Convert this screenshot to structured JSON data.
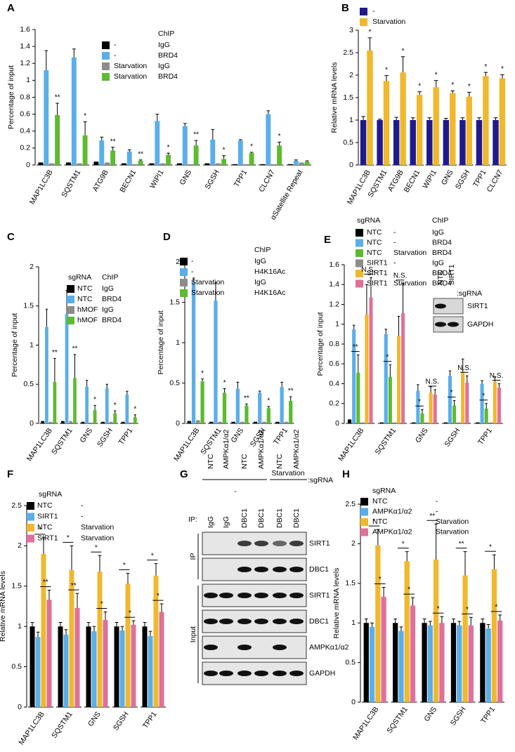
{
  "chart_data": [
    {
      "label": "A",
      "type": "bar",
      "y_label": "Percentage of input",
      "legend_header": [
        "ChIP"
      ],
      "categories": [
        "MAP1LC3B",
        "SQSTM1",
        "ATG9B",
        "BECN1",
        "WIPI1",
        "GNS",
        "SGSH",
        "TPP1",
        "CLCN7",
        "αSatellite Repeat"
      ],
      "ylim": [
        0,
        1.6
      ],
      "yticks": [
        0,
        0.2,
        0.4,
        0.6,
        0.8,
        1,
        1.2,
        1.4,
        1.6
      ],
      "series": [
        {
          "name": [
            "-",
            "IgG"
          ],
          "color": "#000000",
          "values": [
            0.03,
            0.03,
            0.04,
            0.02,
            0.02,
            0.02,
            0.02,
            0.01,
            0.01,
            0.01
          ]
        },
        {
          "name": [
            "-",
            "BRD4"
          ],
          "color": "#5aaeea",
          "values": [
            1.12,
            1.27,
            0.29,
            0.16,
            0.52,
            0.46,
            0.3,
            0.29,
            0.6,
            0.05
          ],
          "errors": [
            0.23,
            0.1,
            0.04,
            0.02,
            0.08,
            0.03,
            0.12,
            0.01,
            0.04,
            0.01
          ]
        },
        {
          "name": [
            "Starvation",
            "IgG"
          ],
          "color": "#8c8c8c",
          "values": [
            0.02,
            0.02,
            0.03,
            0.01,
            0.02,
            0.01,
            0.02,
            0.01,
            0.01,
            0.03
          ]
        },
        {
          "name": [
            "Starvation",
            "BRD4"
          ],
          "color": "#5dbb2e",
          "values": [
            0.59,
            0.35,
            0.17,
            0.05,
            0.12,
            0.23,
            0.07,
            0.14,
            0.23,
            0.04
          ],
          "errors": [
            0.14,
            0.16,
            0.04,
            0.01,
            0.02,
            0.06,
            0.04,
            0.01,
            0.04,
            0.01
          ],
          "significance": [
            "**",
            "*",
            "**",
            "**",
            "*",
            "**",
            "*",
            "*",
            "*",
            null
          ]
        }
      ]
    },
    {
      "label": "B",
      "type": "bar",
      "y_label": "Relative mRNA levels",
      "categories": [
        "MAP1LC3B",
        "SQSTM1",
        "ATG9B",
        "BECN1",
        "WIPI1",
        "GNS",
        "SGSH",
        "TPP1",
        "CLCN7"
      ],
      "ylim": [
        0,
        3
      ],
      "yticks": [
        0,
        0.5,
        1,
        1.5,
        2,
        2.5,
        3
      ],
      "series": [
        {
          "name": "-",
          "color": "#1f1a8c",
          "values": [
            1,
            1,
            1,
            1,
            1,
            1,
            1,
            1,
            1
          ],
          "errors": [
            0.08,
            0.02,
            0.06,
            0.05,
            0.05,
            0.04,
            0.05,
            0.05,
            0.05
          ]
        },
        {
          "name": "Starvation",
          "color": "#f0b82c",
          "values": [
            2.55,
            1.87,
            2.06,
            1.56,
            1.73,
            1.6,
            1.52,
            1.98,
            1.93
          ],
          "errors": [
            0.28,
            0.12,
            0.35,
            0.07,
            0.15,
            0.05,
            0.1,
            0.08,
            0.08
          ],
          "significance": [
            "*",
            "*",
            "*",
            "*",
            "*",
            "*",
            "*",
            "*",
            "*"
          ]
        }
      ]
    },
    {
      "label": "C",
      "type": "bar",
      "y_label": "Percentage of input",
      "legend_header": [
        "sgRNA",
        "ChIP"
      ],
      "categories": [
        "MAP1LC3B",
        "SQSTM1",
        "GNS",
        "SGSH",
        "TPP1"
      ],
      "ylim": [
        0,
        2
      ],
      "yticks": [
        0,
        0.5,
        1,
        1.5,
        2
      ],
      "series": [
        {
          "name": [
            "NTC",
            "IgG"
          ],
          "color": "#000000",
          "values": [
            0.03,
            0.03,
            0.02,
            0.02,
            0.02
          ]
        },
        {
          "name": [
            "NTC",
            "BRD4"
          ],
          "color": "#5aaeea",
          "values": [
            1.23,
            1.4,
            0.47,
            0.45,
            0.37
          ],
          "errors": [
            0.23,
            0.3,
            0.08,
            0.05,
            0.04
          ]
        },
        {
          "name": [
            "hMOF",
            "IgG"
          ],
          "color": "#8c8c8c",
          "values": [
            0.02,
            0.03,
            0.01,
            0.02,
            0.01
          ]
        },
        {
          "name": [
            "hMOF",
            "BRD4"
          ],
          "color": "#5dbb2e",
          "values": [
            0.53,
            0.58,
            0.17,
            0.13,
            0.08
          ],
          "errors": [
            0.3,
            0.3,
            0.06,
            0.03,
            0.03
          ],
          "significance": [
            "**",
            "**",
            "*",
            "*",
            "*"
          ]
        }
      ]
    },
    {
      "label": "D",
      "type": "bar",
      "y_label": "Percentage of input",
      "legend_header": [
        "ChIP"
      ],
      "categories": [
        "MAP1LC3B",
        "SQSTM1",
        "GNS",
        "SGSH",
        "TPP1"
      ],
      "ylim": [
        0,
        2
      ],
      "yticks": [
        0,
        0.5,
        1,
        1.5,
        2
      ],
      "series": [
        {
          "name": [
            "-",
            "IgG"
          ],
          "color": "#000000",
          "values": [
            0.03,
            0.02,
            0.02,
            0.02,
            0.02
          ]
        },
        {
          "name": [
            "-",
            "H4K16Ac"
          ],
          "color": "#5aaeea",
          "values": [
            1.75,
            1.52,
            0.43,
            0.38,
            0.45
          ],
          "errors": [
            0.05,
            0.22,
            0.08,
            0.02,
            0.06
          ]
        },
        {
          "name": [
            "Starvation",
            "IgG"
          ],
          "color": "#8c8c8c",
          "values": [
            0.04,
            0.02,
            0.02,
            0.02,
            0.02
          ]
        },
        {
          "name": [
            "Starvation",
            "H4K16Ac"
          ],
          "color": "#5dbb2e",
          "values": [
            0.52,
            0.38,
            0.22,
            0.19,
            0.28
          ],
          "errors": [
            0.03,
            0.05,
            0.02,
            0.02,
            0.05
          ],
          "significance": [
            "*",
            "*",
            "**",
            "*",
            "**"
          ]
        }
      ]
    },
    {
      "label": "E",
      "type": "bar",
      "y_label": "Percentage of input",
      "legend_header": [
        "sgRNA",
        "ChIP"
      ],
      "categories": [
        "MAP1LC3B",
        "SQSTM1",
        "GNS",
        "SGSH",
        "TPP1"
      ],
      "ylim": [
        0,
        1.6
      ],
      "yticks": [
        0,
        0.2,
        0.4,
        0.6,
        0.8,
        1,
        1.2,
        1.4,
        1.6
      ],
      "series": [
        {
          "name": [
            "NTC",
            "-",
            "IgG"
          ],
          "color": "#000000",
          "values": [
            0.04,
            0.01,
            0.01,
            0.01,
            0.01
          ]
        },
        {
          "name": [
            "NTC",
            "-",
            "BRD4"
          ],
          "color": "#5aaeea",
          "values": [
            0.95,
            0.9,
            0.33,
            0.48,
            0.4
          ],
          "errors": [
            0.04,
            0.05,
            0.06,
            0.05,
            0.03
          ]
        },
        {
          "name": [
            "NTC",
            "Starvation",
            "BRD4"
          ],
          "color": "#5dbb2e",
          "values": [
            0.51,
            0.47,
            0.1,
            0.18,
            0.15
          ],
          "errors": [
            0.18,
            0.12,
            0.04,
            0.05,
            0.05
          ],
          "significance": [
            "**",
            "*",
            "*",
            "*",
            "*"
          ]
        },
        {
          "name": [
            "SIRT1",
            "-",
            "IgG"
          ],
          "color": "#8c8c8c",
          "values": [
            0.01,
            0.01,
            0.01,
            0.01,
            0.01
          ]
        },
        {
          "name": [
            "SIRT1",
            "-",
            "BRD4"
          ],
          "color": "#f0b82c",
          "values": [
            1.1,
            0.88,
            0.31,
            0.52,
            0.42
          ],
          "errors": [
            0.3,
            0.2,
            0.06,
            0.13,
            0.05
          ]
        },
        {
          "name": [
            "SIRT1",
            "Starvation",
            "BRD4"
          ],
          "color": "#e0709a",
          "values": [
            1.27,
            1.11,
            0.29,
            0.41,
            0.36
          ],
          "errors": [
            0.2,
            0.3,
            0.05,
            0.07,
            0.04
          ],
          "significance": [
            "N.S.",
            "N.S.",
            "N.S.",
            "N.S.",
            "N.S."
          ]
        }
      ],
      "inset": {
        "lanes": [
          "NTC",
          "SIRT1"
        ],
        "lane_suffix": ":sgRNA",
        "rows": [
          "SIRT1",
          "GAPDH"
        ]
      }
    },
    {
      "label": "F",
      "type": "bar",
      "y_label": "Relative mRNA levels",
      "legend_header": [
        "sgRNA"
      ],
      "categories": [
        "MAP1LC3B",
        "SQSTM1",
        "GNS",
        "SGSH",
        "TPP1"
      ],
      "ylim": [
        0,
        2.5
      ],
      "yticks": [
        0,
        0.5,
        1,
        1.5,
        2,
        2.5
      ],
      "series": [
        {
          "name": [
            "NTC",
            "-"
          ],
          "color": "#000000",
          "values": [
            1,
            1,
            1,
            1,
            1
          ],
          "errors": [
            0.05,
            0.05,
            0.05,
            0.05,
            0.05
          ]
        },
        {
          "name": [
            "SIRT1",
            "-"
          ],
          "color": "#5aaeea",
          "values": [
            0.87,
            0.9,
            0.94,
            0.95,
            0.88
          ],
          "errors": [
            0.06,
            0.06,
            0.06,
            0.05,
            0.06
          ]
        },
        {
          "name": [
            "NTC",
            "Starvation"
          ],
          "color": "#f0b82c",
          "values": [
            1.9,
            1.7,
            1.68,
            1.53,
            1.63
          ],
          "errors": [
            0.2,
            0.3,
            0.2,
            0.13,
            0.15
          ],
          "significance": [
            "*",
            "*",
            "*",
            "*",
            "*"
          ]
        },
        {
          "name": [
            "SIRT1",
            "Starvation"
          ],
          "color": "#e0709a",
          "values": [
            1.33,
            1.23,
            1.08,
            1.02,
            1.18
          ],
          "errors": [
            0.12,
            0.18,
            0.1,
            0.05,
            0.1
          ],
          "significance": [
            "**",
            "**",
            "*",
            "*",
            "*"
          ]
        }
      ]
    },
    {
      "label": "H",
      "type": "bar",
      "y_label": "Relative mRNA levels",
      "legend_header": [
        "sgRNA"
      ],
      "categories": [
        "MAP1LC3B",
        "SQSTM1",
        "GNS",
        "SGSH",
        "TPP1"
      ],
      "ylim": [
        0,
        2.5
      ],
      "yticks": [
        0,
        0.5,
        1,
        1.5,
        2,
        2.5
      ],
      "series": [
        {
          "name": [
            "NTC",
            "-"
          ],
          "color": "#000000",
          "values": [
            1,
            1,
            1,
            1,
            1
          ],
          "errors": [
            0.05,
            0.05,
            0.05,
            0.05,
            0.05
          ]
        },
        {
          "name": [
            "AMPKα1/α2",
            "-"
          ],
          "color": "#5aaeea",
          "values": [
            0.95,
            0.9,
            0.97,
            0.97,
            0.93
          ],
          "errors": [
            0.05,
            0.05,
            0.05,
            0.05,
            0.05
          ]
        },
        {
          "name": [
            "NTC",
            "Starvation"
          ],
          "color": "#f0b82c",
          "values": [
            1.98,
            1.78,
            1.8,
            1.6,
            1.68
          ],
          "errors": [
            0.2,
            0.12,
            0.45,
            0.3,
            0.18
          ],
          "significance": [
            "*",
            "*",
            "**",
            "**",
            "*"
          ]
        },
        {
          "name": [
            "AMPKα1/α2",
            "Starvation"
          ],
          "color": "#e0709a",
          "values": [
            1.33,
            1.22,
            1,
            0.97,
            1.03
          ],
          "errors": [
            0.12,
            0.1,
            0.08,
            0.1,
            0.07
          ],
          "significance": [
            "*",
            "*",
            "*",
            "*",
            "*"
          ]
        }
      ]
    }
  ],
  "blot": {
    "label": "G",
    "lanes": [
      "NTC",
      "AMPKα1/α2",
      "NTC",
      "AMPKα1/α2",
      "NTC",
      "AMPKα1/α2"
    ],
    "lane_suffix": ":sgRNA",
    "treatments": [
      "-",
      "Starvation"
    ],
    "ip_prefix": "IP:",
    "ip_lanes": [
      "IgG",
      "IgG",
      "DBC1",
      "DBC1",
      "DBC1",
      "DBC1"
    ],
    "groups": [
      {
        "name": "IP",
        "rows": [
          "SIRT1",
          "DBC1"
        ]
      },
      {
        "name": "Input",
        "rows": [
          "SIRT1",
          "DBC1",
          "AMPKα1/α2",
          "GAPDH"
        ]
      }
    ]
  }
}
